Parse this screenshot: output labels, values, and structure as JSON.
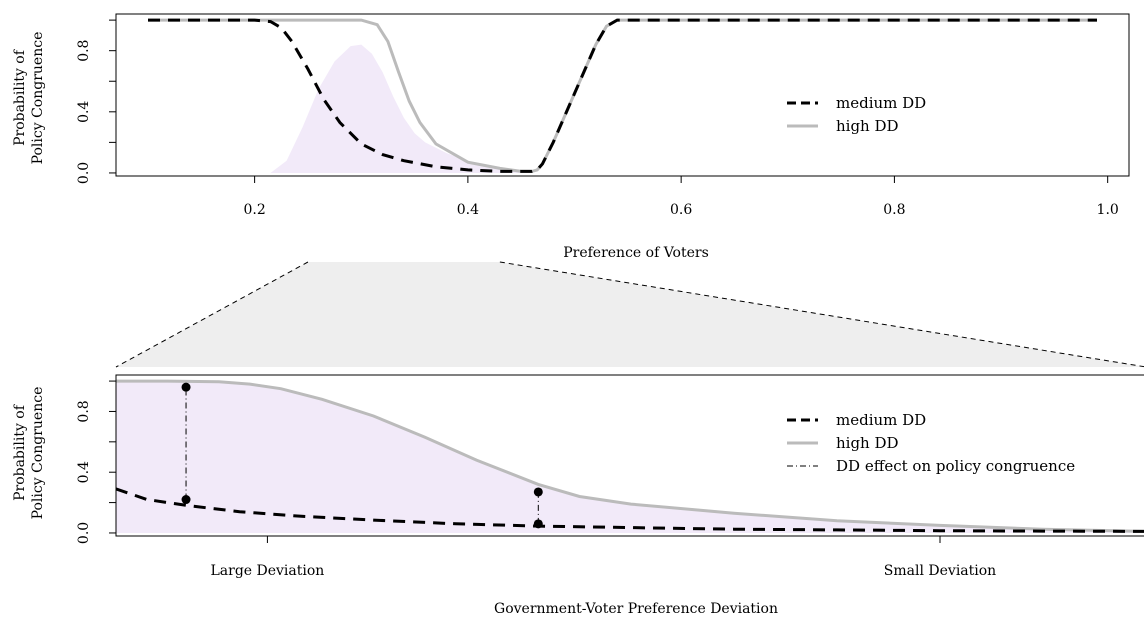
{
  "colors": {
    "medium": "#000000",
    "high": "#bbbbbb",
    "fill": "#f2eaf9",
    "zoom": "#eeeeee"
  },
  "legend_top": {
    "medium": "medium DD",
    "high": "high DD"
  },
  "legend_bottom": {
    "medium": "medium DD",
    "high": "high DD",
    "effect": "DD effect on policy congruence"
  },
  "chart_data": [
    {
      "type": "line",
      "xlabel": "Preference of Voters",
      "ylabel_line1": "Probability of",
      "ylabel_line2": "Policy Congruence",
      "xlim": [
        0.07,
        1.02
      ],
      "ylim": [
        -0.02,
        1.04
      ],
      "xticks": [
        "0.2",
        "0.4",
        "0.6",
        "0.8",
        "1.0"
      ],
      "yticks": [
        "0.0",
        "0.4",
        "0.8"
      ],
      "legend_position": "right",
      "series": [
        {
          "name": "medium DD",
          "style": "dashed",
          "x": [
            0.1,
            0.2,
            0.215,
            0.225,
            0.235,
            0.25,
            0.265,
            0.28,
            0.3,
            0.32,
            0.34,
            0.37,
            0.4,
            0.43,
            0.46,
            0.465,
            0.47,
            0.48,
            0.5,
            0.52,
            0.53,
            0.54,
            0.6,
            0.8,
            0.99
          ],
          "y": [
            1.0,
            1.0,
            0.99,
            0.95,
            0.86,
            0.68,
            0.48,
            0.33,
            0.19,
            0.12,
            0.08,
            0.04,
            0.02,
            0.01,
            0.01,
            0.02,
            0.06,
            0.2,
            0.52,
            0.84,
            0.96,
            1.0,
            1.0,
            1.0,
            1.0
          ]
        },
        {
          "name": "high DD",
          "style": "solid",
          "x": [
            0.1,
            0.2,
            0.3,
            0.315,
            0.325,
            0.335,
            0.345,
            0.355,
            0.37,
            0.4,
            0.43,
            0.45,
            0.46,
            0.465,
            0.47,
            0.48,
            0.5,
            0.52,
            0.53,
            0.54,
            0.6,
            0.8,
            0.99
          ],
          "y": [
            1.0,
            1.0,
            1.0,
            0.97,
            0.86,
            0.66,
            0.47,
            0.33,
            0.19,
            0.07,
            0.03,
            0.01,
            0.01,
            0.02,
            0.06,
            0.2,
            0.52,
            0.84,
            0.96,
            1.0,
            1.0,
            1.0,
            1.0
          ]
        }
      ],
      "density_area": {
        "x": [
          0.215,
          0.23,
          0.245,
          0.26,
          0.275,
          0.29,
          0.3,
          0.31,
          0.32,
          0.33,
          0.34,
          0.35,
          0.36,
          0.38,
          0.4,
          0.42,
          0.44,
          0.46
        ],
        "y": [
          0.0,
          0.08,
          0.3,
          0.55,
          0.73,
          0.83,
          0.84,
          0.78,
          0.66,
          0.5,
          0.36,
          0.26,
          0.2,
          0.13,
          0.08,
          0.04,
          0.02,
          0.0
        ]
      },
      "zoom_range": [
        0.25,
        0.43
      ]
    },
    {
      "type": "line",
      "xlabel": "Government-Voter Preference Deviation",
      "ylabel_line1": "Probability of",
      "ylabel_line2": "Policy Congruence",
      "xlim": [
        0,
        1
      ],
      "ylim": [
        -0.02,
        1.04
      ],
      "xticks": [
        "Large Deviation",
        "Small Deviation"
      ],
      "xtick_positions": [
        0.147,
        0.8
      ],
      "yticks": [
        "0.0",
        "0.4",
        "0.8"
      ],
      "legend_position": "right",
      "series": [
        {
          "name": "medium DD",
          "style": "dashed",
          "x": [
            0.0,
            0.03,
            0.07,
            0.12,
            0.18,
            0.25,
            0.33,
            0.41,
            0.5,
            0.6,
            0.7,
            0.8,
            0.9,
            1.0
          ],
          "y": [
            0.29,
            0.22,
            0.18,
            0.14,
            0.11,
            0.085,
            0.06,
            0.045,
            0.035,
            0.025,
            0.02,
            0.015,
            0.012,
            0.01
          ]
        },
        {
          "name": "high DD",
          "style": "solid",
          "x": [
            0.0,
            0.05,
            0.1,
            0.13,
            0.16,
            0.2,
            0.25,
            0.3,
            0.35,
            0.41,
            0.45,
            0.5,
            0.6,
            0.7,
            0.8,
            0.9,
            1.0
          ],
          "y": [
            1.0,
            1.0,
            0.995,
            0.98,
            0.95,
            0.88,
            0.77,
            0.63,
            0.48,
            0.32,
            0.24,
            0.19,
            0.13,
            0.08,
            0.05,
            0.025,
            0.01
          ]
        }
      ],
      "effects": [
        {
          "x": 0.068,
          "y_low": 0.22,
          "y_high": 0.96
        },
        {
          "x": 0.41,
          "y_low": 0.06,
          "y_high": 0.27
        }
      ]
    }
  ]
}
